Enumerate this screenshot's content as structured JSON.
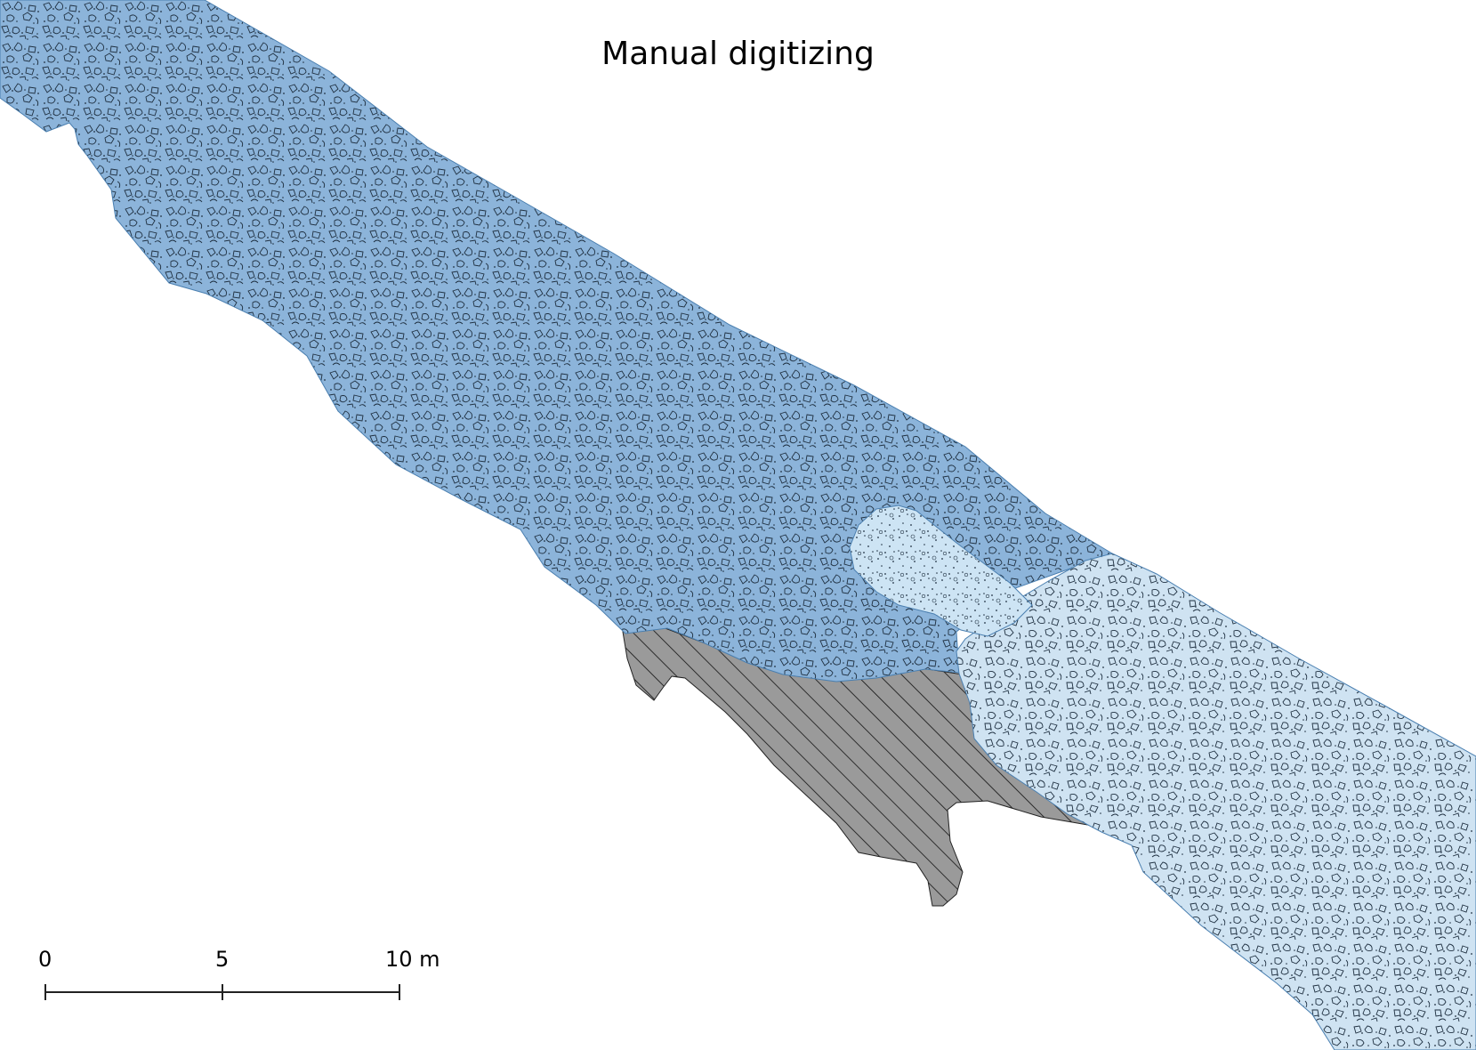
{
  "map": {
    "title": "Manual digitizing",
    "units": [
      {
        "id": "blue-gravel-unit",
        "fill": "#8cb4da",
        "pattern": "gravel"
      },
      {
        "id": "light-gravel-unit",
        "fill": "#cfe3f2",
        "pattern": "gravel"
      },
      {
        "id": "light-sand-unit",
        "fill": "#cde4f4",
        "pattern": "dots"
      },
      {
        "id": "hatched-unit",
        "fill": "#9a9a9a",
        "pattern": "hatch"
      }
    ],
    "outline_color": "#4a7fb0"
  },
  "scale_bar": {
    "labels": [
      "0",
      "5",
      "10 m"
    ],
    "values_m": [
      0,
      5,
      10
    ]
  }
}
